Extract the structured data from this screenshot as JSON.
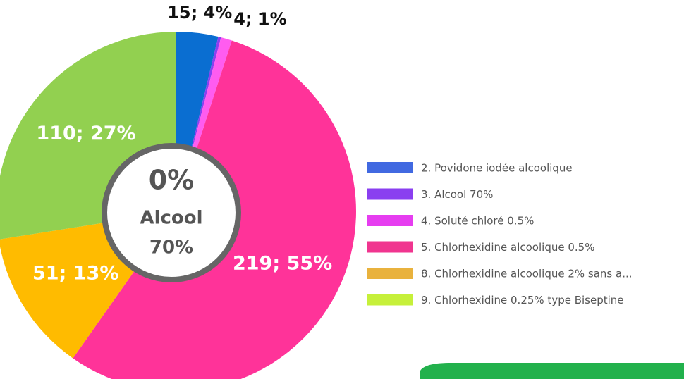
{
  "chart_data": {
    "type": "donut",
    "categories": [
      "2. Povidone iodée alcoolique",
      "3. Alcool 70%",
      "4. Soluté chloré 0.5%",
      "5. Chlorhexidine alcoolique 0.5%",
      "8. Chlorhexidine alcoolique 2% sans a...",
      "9. Chlorhexidine 0.25% type Biseptine"
    ],
    "values": [
      15,
      1,
      4,
      219,
      51,
      110
    ],
    "value_labels": [
      "15; 4%",
      null,
      "4; 1%",
      "219; 55%",
      "51; 13%",
      "110; 27%"
    ],
    "colors": [
      "#0a6ed1",
      "#8a3ff0",
      "#ff5cf0",
      "#ff3399",
      "#ffbb00",
      "#92d050"
    ],
    "legend_colors": [
      "#4169e1",
      "#8a3ff0",
      "#e63df0",
      "#f0358f",
      "#e9b23d",
      "#c6f03a"
    ],
    "center_text": [
      "0%",
      "Alcool",
      "70%"
    ],
    "legend": "right"
  }
}
